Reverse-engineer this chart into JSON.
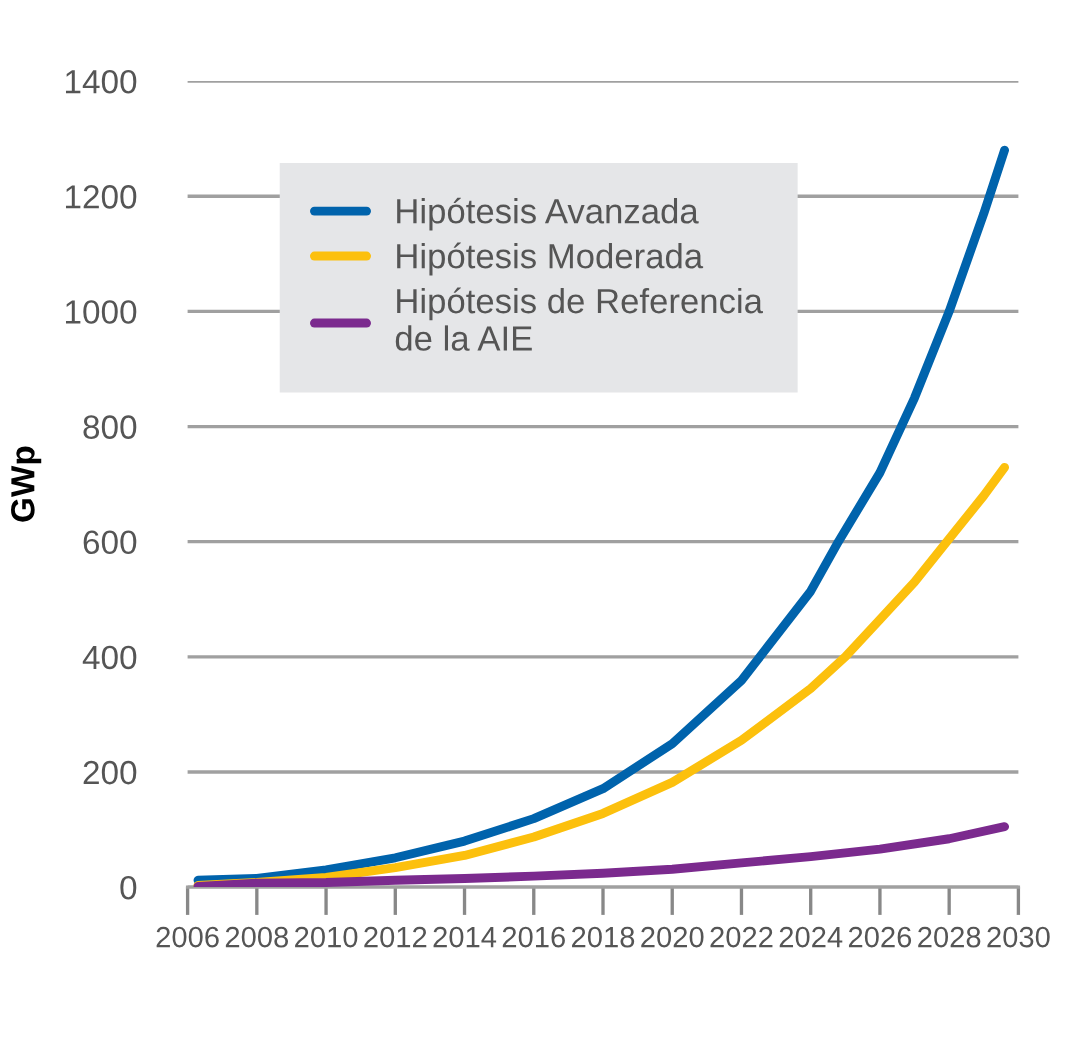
{
  "chart_data": {
    "type": "line",
    "ylabel": "GWp",
    "xlim": [
      2006,
      2030
    ],
    "xticks": [
      2006,
      2008,
      2010,
      2012,
      2014,
      2016,
      2018,
      2020,
      2022,
      2024,
      2026,
      2028,
      2030
    ],
    "ylim": [
      0,
      1400
    ],
    "yticks": [
      0,
      200,
      400,
      600,
      800,
      1000,
      1200,
      1400
    ],
    "grid": "y",
    "legend": "top left",
    "marker": "none",
    "line_style": "solid",
    "series": [
      {
        "name": "Hipótesis Avanzada",
        "color": "#0063ac",
        "x": [
          2006.3,
          2008,
          2010,
          2012,
          2014,
          2016,
          2018,
          2020,
          2022,
          2024,
          2024.8,
          2026,
          2027,
          2028,
          2029,
          2029.6
        ],
        "values": [
          12,
          15,
          30,
          51,
          80,
          119,
          171,
          249,
          359,
          514,
          600,
          720,
          850,
          1000,
          1170,
          1280
        ]
      },
      {
        "name": "Hipótesis Moderada",
        "color": "#fcc00d",
        "x": [
          2006.3,
          2008,
          2010,
          2012,
          2014,
          2016,
          2018,
          2020,
          2022,
          2024,
          2025,
          2026,
          2027,
          2028,
          2029,
          2029.6
        ],
        "values": [
          3,
          8,
          17,
          34,
          55,
          87,
          128,
          182,
          255,
          345,
          400,
          465,
          530,
          605,
          680,
          729
        ]
      },
      {
        "name": "Hipótesis de Referencia\nde la AIE",
        "color": "#7b2a8e",
        "x": [
          2006.3,
          2008,
          2010,
          2012,
          2014,
          2016,
          2018,
          2020,
          2022,
          2024,
          2026,
          2028,
          2029.6
        ],
        "values": [
          1,
          7,
          8,
          12,
          15,
          19,
          24,
          31,
          42,
          53,
          66,
          84,
          105
        ]
      }
    ]
  }
}
